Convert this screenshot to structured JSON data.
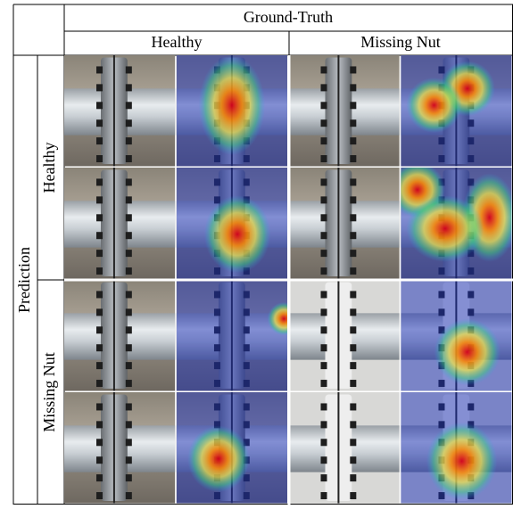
{
  "header": {
    "title": "Ground-Truth",
    "columns": [
      "Healthy",
      "Missing Nut"
    ]
  },
  "side": {
    "title": "Prediction",
    "rows": [
      "Healthy",
      "Missing Nut"
    ]
  }
}
